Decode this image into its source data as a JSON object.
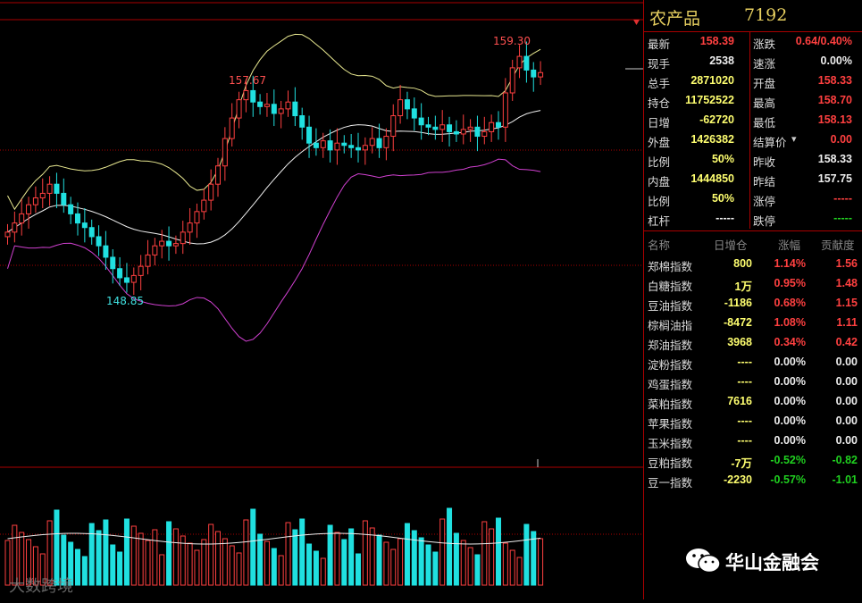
{
  "instrument": {
    "name": "农产品",
    "code": "7192"
  },
  "chart": {
    "high_label": "159.30",
    "mid_high_label": "157.67",
    "low_label": "148.85"
  },
  "quote": [
    {
      "l1": "最新",
      "v1": "158.39",
      "c1": "red",
      "l2": "涨跌",
      "v2": "0.64/0.40%",
      "c2": "red"
    },
    {
      "l1": "现手",
      "v1": "2538",
      "c1": "wht",
      "l2": "速涨",
      "v2": "0.00%",
      "c2": "wht"
    },
    {
      "l1": "总手",
      "v1": "2871020",
      "c1": "yel",
      "l2": "开盘",
      "v2": "158.33",
      "c2": "red"
    },
    {
      "l1": "持仓",
      "v1": "11752522",
      "c1": "yel",
      "l2": "最高",
      "v2": "158.70",
      "c2": "red"
    },
    {
      "l1": "日增",
      "v1": "-62720",
      "c1": "yel",
      "l2": "最低",
      "v2": "158.13",
      "c2": "red"
    },
    {
      "l1": "外盘",
      "v1": "1426382",
      "c1": "yel",
      "l2": "结算价",
      "v2": "0.00",
      "c2": "red"
    },
    {
      "l1": "比例",
      "v1": "50%",
      "c1": "yel",
      "l2": "昨收",
      "v2": "158.33",
      "c2": "wht"
    },
    {
      "l1": "内盘",
      "v1": "1444850",
      "c1": "yel",
      "l2": "昨结",
      "v2": "157.75",
      "c2": "wht"
    },
    {
      "l1": "比例",
      "v1": "50%",
      "c1": "yel",
      "l2": "涨停",
      "v2": "-----",
      "c2": "red"
    },
    {
      "l1": "杠杆",
      "v1": "-----",
      "c1": "wht",
      "l2": "跌停",
      "v2": "-----",
      "c2": "grn"
    }
  ],
  "index_table": {
    "headers": [
      "名称",
      "日增仓",
      "涨幅",
      "贡献度"
    ],
    "rows": [
      {
        "name": "郑棉指数",
        "inc": "800",
        "chg": "1.14%",
        "con": "1.56",
        "c": "red"
      },
      {
        "name": "白糖指数",
        "inc": "1万",
        "chg": "0.95%",
        "con": "1.48",
        "c": "red"
      },
      {
        "name": "豆油指数",
        "inc": "-1186",
        "chg": "0.68%",
        "con": "1.15",
        "c": "red"
      },
      {
        "name": "棕榈油指",
        "inc": "-8472",
        "chg": "1.08%",
        "con": "1.11",
        "c": "red"
      },
      {
        "name": "郑油指数",
        "inc": "3968",
        "chg": "0.34%",
        "con": "0.42",
        "c": "red"
      },
      {
        "name": "淀粉指数",
        "inc": "----",
        "chg": "0.00%",
        "con": "0.00",
        "c": "wht"
      },
      {
        "name": "鸡蛋指数",
        "inc": "----",
        "chg": "0.00%",
        "con": "0.00",
        "c": "wht"
      },
      {
        "name": "菜粕指数",
        "inc": "7616",
        "chg": "0.00%",
        "con": "0.00",
        "c": "wht"
      },
      {
        "name": "苹果指数",
        "inc": "----",
        "chg": "0.00%",
        "con": "0.00",
        "c": "wht"
      },
      {
        "name": "玉米指数",
        "inc": "----",
        "chg": "0.00%",
        "con": "0.00",
        "c": "wht"
      },
      {
        "name": "豆粕指数",
        "inc": "-7万",
        "chg": "-0.52%",
        "con": "-0.82",
        "c": "grn"
      },
      {
        "name": "豆一指数",
        "inc": "-2230",
        "chg": "-0.57%",
        "con": "-1.01",
        "c": "grn"
      }
    ]
  },
  "watermarks": {
    "left": "大数跨境",
    "right": "华山金融会"
  },
  "colors": {
    "up": "#ff4040",
    "down": "#20e0e0",
    "upper_band": "#e8e890",
    "mid_band": "#f0f0f0",
    "lower_band": "#d040d0",
    "grid": "#a00000"
  }
}
